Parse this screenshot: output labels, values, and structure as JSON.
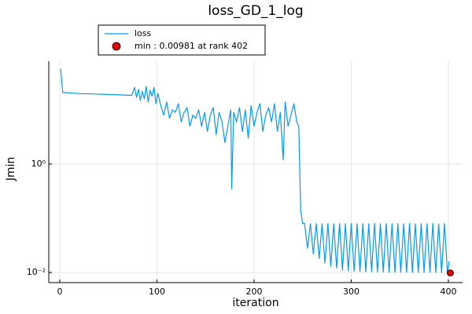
{
  "chart_data": {
    "type": "line",
    "title": "loss_GD_1_log",
    "x_label": "iteration",
    "y_label": "Jmin",
    "xlim": [
      -11.3,
      414.6
    ],
    "xticks": [
      0,
      100,
      200,
      300,
      400
    ],
    "ylim": [
      0.0065,
      79
    ],
    "y_log": true,
    "yticks": [
      {
        "value": 0.01,
        "label": "10⁻²"
      },
      {
        "value": 1,
        "label": "10⁰"
      }
    ],
    "grid": true,
    "legend": "top-left",
    "series": [
      {
        "name": "loss",
        "type": "line",
        "color": "#009af9",
        "x": [
          1,
          3,
          20,
          40,
          60,
          74,
          77,
          79,
          81,
          83,
          85,
          87,
          89,
          91,
          93,
          95,
          97,
          99,
          101,
          104,
          107,
          110,
          113,
          116,
          119,
          122,
          125,
          128,
          131,
          134,
          137,
          140,
          143,
          146,
          149,
          152,
          155,
          158,
          161,
          164,
          167,
          170,
          173,
          176,
          177,
          179,
          182,
          185,
          188,
          191,
          194,
          197,
          200,
          203,
          206,
          209,
          212,
          215,
          218,
          221,
          224,
          227,
          230,
          232,
          235,
          238,
          241,
          244,
          246,
          248,
          250,
          252,
          255,
          258,
          261,
          264,
          267,
          270,
          273,
          276,
          279,
          282,
          285,
          288,
          291,
          294,
          297,
          300,
          303,
          306,
          309,
          312,
          315,
          318,
          321,
          324,
          327,
          330,
          333,
          336,
          339,
          342,
          345,
          348,
          351,
          354,
          357,
          360,
          363,
          366,
          369,
          372,
          375,
          378,
          381,
          384,
          387,
          390,
          393,
          396,
          399,
          401
        ],
        "values": [
          57,
          21,
          20,
          19.5,
          19,
          18.5,
          26,
          17,
          24,
          15,
          22,
          16,
          27,
          14,
          23,
          18,
          26,
          13,
          20,
          12,
          8,
          14,
          7,
          10,
          9,
          13,
          6,
          9,
          11,
          5,
          8,
          7,
          10,
          5,
          9,
          4,
          8,
          11,
          3.5,
          9,
          6,
          2.5,
          5,
          10,
          0.35,
          9,
          6,
          11,
          4,
          10,
          3,
          12,
          5,
          9,
          13,
          4,
          8,
          11,
          6,
          13,
          4,
          9,
          1.2,
          14,
          5,
          8,
          13,
          6,
          5,
          0.14,
          0.08,
          0.08,
          0.028,
          0.079,
          0.022,
          0.08,
          0.018,
          0.079,
          0.015,
          0.08,
          0.013,
          0.079,
          0.012,
          0.08,
          0.011,
          0.079,
          0.0108,
          0.08,
          0.0105,
          0.079,
          0.0104,
          0.08,
          0.0103,
          0.079,
          0.0103,
          0.08,
          0.0102,
          0.079,
          0.0102,
          0.08,
          0.0101,
          0.079,
          0.0101,
          0.08,
          0.0101,
          0.079,
          0.01,
          0.08,
          0.01,
          0.079,
          0.01,
          0.08,
          0.01,
          0.079,
          0.01,
          0.08,
          0.01,
          0.079,
          0.01,
          0.08,
          0.0099,
          0.016
        ]
      },
      {
        "name": "min : 0.00981 at rank 402",
        "type": "scatter",
        "color": "#e60000",
        "x": [
          402
        ],
        "values": [
          0.00981
        ]
      }
    ]
  }
}
